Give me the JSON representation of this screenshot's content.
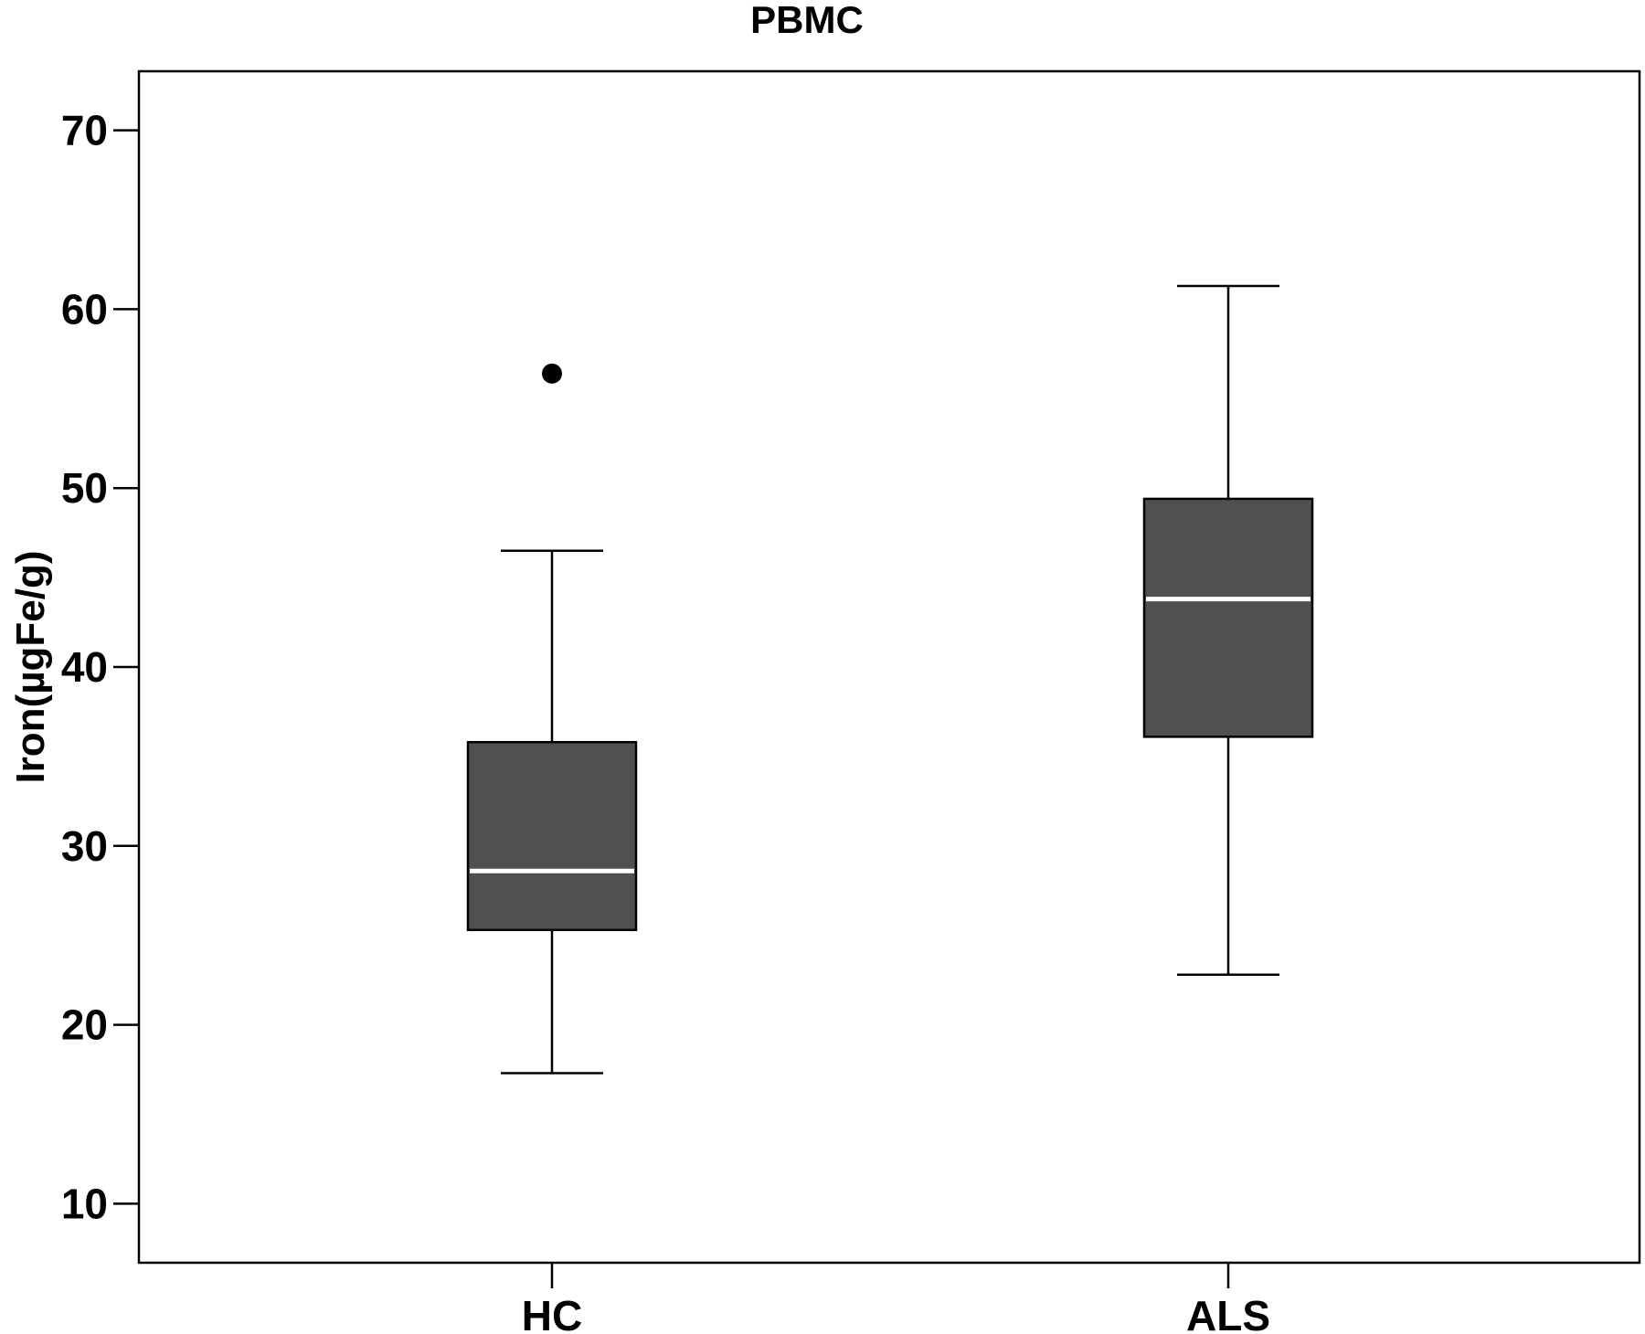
{
  "chart_data": {
    "type": "box",
    "title": "PBMC",
    "xlabel": "",
    "ylabel": "Iron(µgFe/g)",
    "ylim": [
      6.7,
      73.3
    ],
    "yticks": [
      10,
      20,
      30,
      40,
      50,
      60,
      70
    ],
    "ytick_labels": [
      "10",
      "20",
      "30",
      "40",
      "50",
      "60",
      "70"
    ],
    "grid": false,
    "legend": "none",
    "box_color": "#505050",
    "median_color": "#ffffff",
    "categories": [
      "HC",
      "ALS"
    ],
    "boxes": [
      {
        "category": "HC",
        "whisker_low": 17.3,
        "q1": 25.3,
        "median": 28.6,
        "q3": 35.8,
        "whisker_high": 46.5,
        "outliers": [
          56.4
        ]
      },
      {
        "category": "ALS",
        "whisker_low": 22.8,
        "q1": 36.1,
        "median": 43.8,
        "q3": 49.4,
        "whisker_high": 61.3,
        "outliers": []
      }
    ]
  }
}
